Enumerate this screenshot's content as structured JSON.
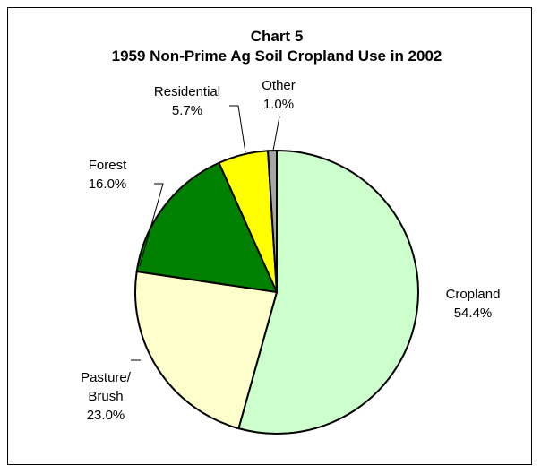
{
  "chart_data": {
    "type": "pie",
    "title": "Chart 5",
    "subtitle": "1959 Non-Prime Ag Soil Cropland Use in 2002",
    "start_angle_deg": 0,
    "direction": "clockwise",
    "slices": [
      {
        "name": "Cropland",
        "label_lines": [
          "Cropland"
        ],
        "value": 54.4,
        "value_label": "54.4%",
        "color": "#ccffcc"
      },
      {
        "name": "Pasture/Brush",
        "label_lines": [
          "Pasture/",
          "Brush"
        ],
        "value": 23.0,
        "value_label": "23.0%",
        "color": "#ffffcc"
      },
      {
        "name": "Forest",
        "label_lines": [
          "Forest"
        ],
        "value": 16.0,
        "value_label": "16.0%",
        "color": "#008000"
      },
      {
        "name": "Residential",
        "label_lines": [
          "Residential"
        ],
        "value": 5.7,
        "value_label": "5.7%",
        "color": "#ffff00"
      },
      {
        "name": "Other",
        "label_lines": [
          "Other"
        ],
        "value": 1.0,
        "value_label": "1.0%",
        "color": "#a6a6a6"
      }
    ]
  }
}
